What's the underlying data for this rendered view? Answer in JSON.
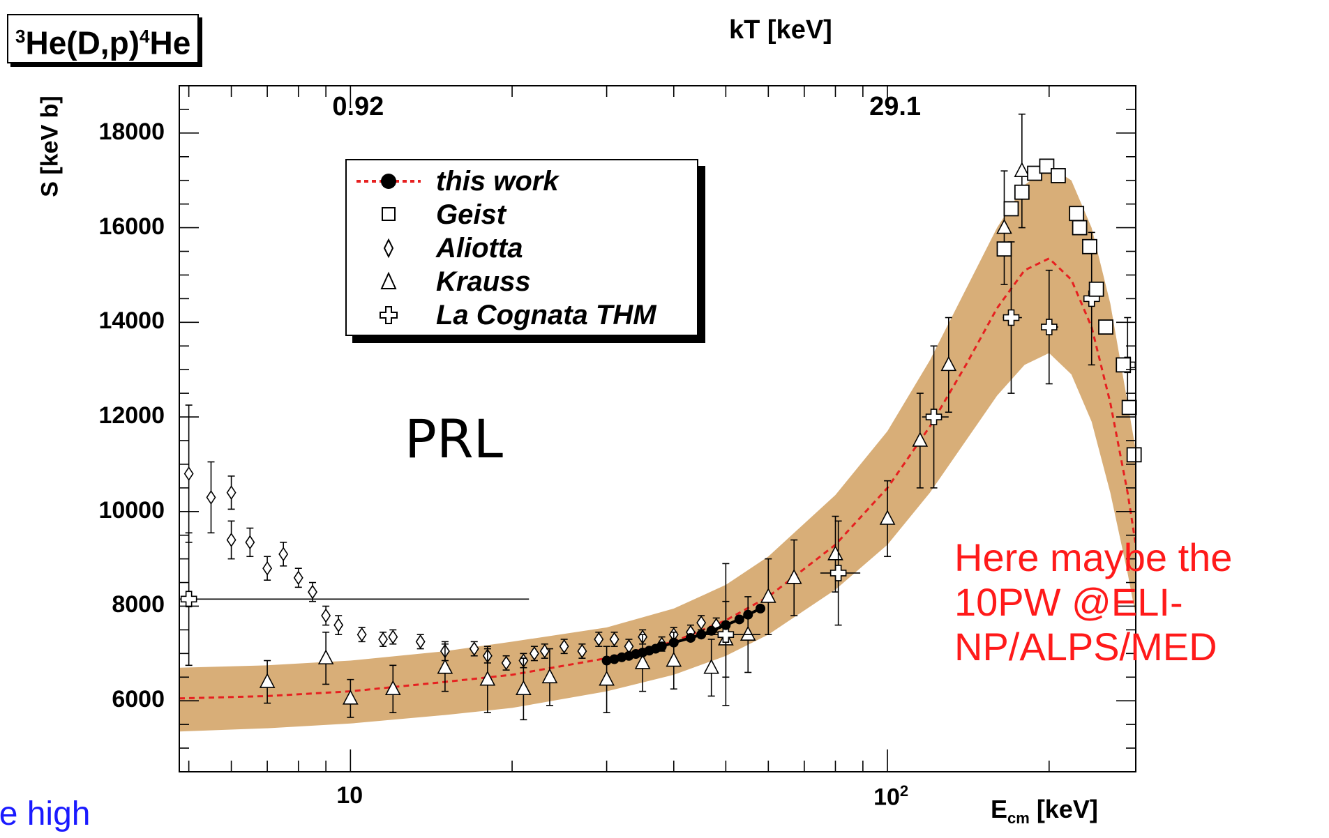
{
  "reaction": {
    "pre": "He(D,p)",
    "post": "He",
    "sup1": "3",
    "sup2": "4"
  },
  "annotations": {
    "prl": "PRL",
    "red_note": "Here maybe the 10PW @ELI-NP/ALPS/MED",
    "blue_note": "ybe high"
  },
  "colors": {
    "band": "#d8ae78",
    "fit_line": "#e62020",
    "red_note": "#ff1a1a",
    "blue_note": "#1a1aff"
  },
  "chart_data": {
    "type": "scatter",
    "x_scale": "log",
    "xlabel": {
      "main": "E",
      "sub": "cm",
      "unit": " [keV]"
    },
    "ylabel": "S [keV b]",
    "top_axis_title": "kT [keV]",
    "top_axis_ticks": [
      {
        "at_E": 10,
        "label": "0.92"
      },
      {
        "at_E": 100,
        "label": "29.1"
      }
    ],
    "x_tick_labels": [
      {
        "value": 10,
        "base": "10",
        "exp": ""
      },
      {
        "value": 100,
        "base": "10",
        "exp": "2"
      }
    ],
    "y_ticks": [
      6000,
      8000,
      10000,
      12000,
      14000,
      16000,
      18000
    ],
    "xlim": [
      4.8,
      290
    ],
    "ylim": [
      4500,
      19000
    ],
    "legend": [
      {
        "name": "this work",
        "marker": "line-dot"
      },
      {
        "name": "Geist",
        "marker": "square"
      },
      {
        "name": "Aliotta",
        "marker": "diamond"
      },
      {
        "name": "Krauss",
        "marker": "triangle"
      },
      {
        "name": "La Cognata THM",
        "marker": "cross"
      }
    ],
    "band": {
      "x": [
        4.8,
        7,
        10,
        15,
        20,
        30,
        40,
        50,
        60,
        80,
        100,
        120,
        140,
        160,
        180,
        200,
        220,
        240,
        260,
        280,
        290
      ],
      "lower": [
        5350,
        5420,
        5520,
        5700,
        5850,
        6200,
        6550,
        6950,
        7400,
        8350,
        9300,
        10400,
        11500,
        12450,
        13100,
        13350,
        12900,
        11900,
        10400,
        8700,
        7800
      ],
      "upper": [
        6700,
        6750,
        6850,
        7050,
        7250,
        7550,
        7950,
        8450,
        9050,
        10350,
        11700,
        13200,
        14700,
        16000,
        16900,
        17300,
        17000,
        16000,
        14400,
        12300,
        11300
      ]
    },
    "fit": {
      "x": [
        4.8,
        7,
        10,
        15,
        20,
        30,
        40,
        50,
        60,
        80,
        100,
        120,
        140,
        160,
        180,
        200,
        220,
        240,
        260,
        280,
        290
      ],
      "y": [
        6050,
        6100,
        6200,
        6400,
        6550,
        6900,
        7250,
        7700,
        8200,
        9300,
        10500,
        11800,
        13100,
        14300,
        15100,
        15350,
        14900,
        13900,
        12300,
        10400,
        9300
      ]
    },
    "this_work": {
      "x": [
        30,
        31,
        32,
        33,
        34,
        35,
        36,
        37,
        38,
        40,
        43,
        45,
        47,
        50,
        53,
        55,
        58
      ],
      "y": [
        6850,
        6880,
        6920,
        6950,
        6990,
        7020,
        7060,
        7100,
        7150,
        7230,
        7330,
        7400,
        7480,
        7600,
        7720,
        7820,
        7950
      ]
    },
    "geist": {
      "x": [
        165,
        170,
        178,
        188,
        198,
        208,
        225,
        228,
        238,
        245,
        255,
        275,
        282,
        288
      ],
      "y": [
        15550,
        16400,
        16750,
        17150,
        17300,
        17100,
        16300,
        16000,
        15600,
        14700,
        13900,
        13100,
        12200,
        11200
      ]
    },
    "aliotta": {
      "x": [
        5.0,
        5.5,
        6.0,
        6.0,
        6.5,
        7.0,
        7.5,
        8.0,
        8.5,
        9.0,
        9.5,
        10.5,
        11.5,
        12.0,
        13.5,
        15.0,
        17.0,
        18.0,
        19.5,
        21.0,
        22.0,
        23.0,
        25.0,
        27.0,
        29.0,
        31.0,
        33.0,
        35.0,
        38.0,
        40.0,
        43.0,
        45.0,
        48.0
      ],
      "y": [
        10800,
        10300,
        10400,
        9400,
        9350,
        8800,
        9100,
        8600,
        8300,
        7800,
        7600,
        7400,
        7300,
        7350,
        7250,
        7050,
        7100,
        6950,
        6800,
        6850,
        7000,
        7050,
        7150,
        7050,
        7300,
        7300,
        7150,
        7350,
        7200,
        7400,
        7450,
        7650,
        7600
      ],
      "yerr": [
        1450,
        750,
        350,
        400,
        300,
        250,
        250,
        200,
        200,
        200,
        200,
        150,
        150,
        150,
        150,
        200,
        150,
        150,
        150,
        150,
        150,
        150,
        150,
        150,
        150,
        150,
        150,
        150,
        150,
        150,
        150,
        150,
        150
      ]
    },
    "krauss": {
      "x": [
        7.0,
        9.0,
        10.0,
        12.0,
        15.0,
        18.0,
        21.0,
        23.5,
        30.0,
        35.0,
        40.0,
        47.0,
        50.0,
        55.0,
        60.0,
        67.0,
        80.0,
        100.0,
        115.0,
        130.0,
        165.0,
        178.0
      ],
      "y": [
        6400,
        6900,
        6050,
        6250,
        6700,
        6450,
        6250,
        6500,
        6450,
        6800,
        6850,
        6700,
        7300,
        7400,
        8200,
        8600,
        9100,
        9850,
        11500,
        13100,
        16000,
        17200
      ],
      "yerr": [
        450,
        550,
        400,
        500,
        500,
        700,
        650,
        600,
        700,
        600,
        600,
        600,
        800,
        800,
        800,
        800,
        800,
        800,
        1000,
        1000,
        1200,
        1200
      ]
    },
    "lacognata": {
      "x": [
        5.0,
        50.0,
        81.0,
        122.0,
        170.0,
        200.0,
        240.0,
        280.0
      ],
      "y": [
        8150,
        7400,
        8700,
        12000,
        14100,
        13900,
        14500,
        13100
      ],
      "yerr": [
        1400,
        1500,
        1100,
        1500,
        1600,
        1200,
        1400,
        1000
      ],
      "xerr_lo": [
        0.2,
        6,
        6,
        6,
        6,
        6,
        6,
        6
      ],
      "xerr_hi": [
        16.5,
        8,
        8,
        8,
        8,
        8,
        8,
        8
      ]
    }
  }
}
